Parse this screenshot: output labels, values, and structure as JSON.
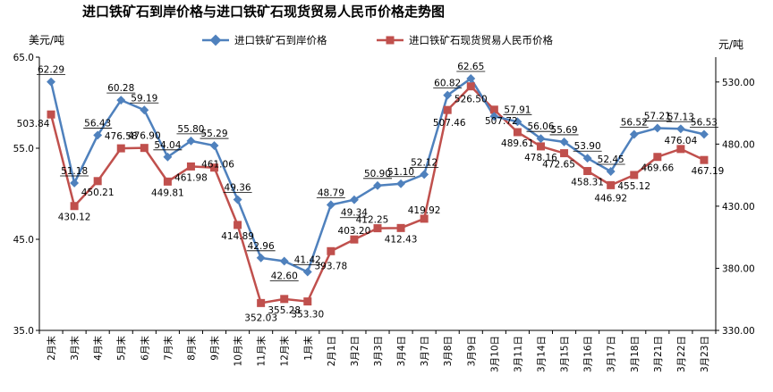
{
  "chart_data": {
    "type": "line",
    "title": "进口铁矿石到岸价格与进口铁矿石现货贸易人民币价格走势图",
    "y_left_unit": "美元/吨",
    "y_right_unit": "元/吨",
    "y_left_ticks": [
      "65.0",
      "55.0",
      "45.0",
      "35.0"
    ],
    "y_right_ticks": [
      "530.00",
      "480.00",
      "430.00",
      "380.00",
      "330.00"
    ],
    "y_left_range": [
      35,
      65
    ],
    "y_right_range": [
      330,
      550
    ],
    "grid": false,
    "legend_position": "top",
    "categories": [
      "2月末",
      "3月末",
      "4月末",
      "5月末",
      "6月末",
      "7月末",
      "8月末",
      "9月末",
      "10月末",
      "11月末",
      "12月末",
      "1月末",
      "2月1日",
      "3月2日",
      "3月3日",
      "3月4日",
      "3月7日",
      "3月8日",
      "3月9日",
      "3月10日",
      "3月11日",
      "3月14日",
      "3月15日",
      "3月16日",
      "3月17日",
      "3月18日",
      "3月21日",
      "3月22日",
      "3月23日"
    ],
    "series": [
      {
        "name": "进口铁矿石到岸价格",
        "axis": "left",
        "color": "#4F81BD",
        "values": [
          62.29,
          51.18,
          56.43,
          60.28,
          59.19,
          54.04,
          55.8,
          55.29,
          49.36,
          42.96,
          42.6,
          41.42,
          48.79,
          49.34,
          50.9,
          51.1,
          52.12,
          60.82,
          62.65,
          58.5,
          57.91,
          56.06,
          55.69,
          53.9,
          52.45,
          56.52,
          57.21,
          57.13,
          56.53
        ],
        "labels": [
          "62.29",
          "51.18",
          "56.43",
          "60.28",
          "59.19",
          "54.04",
          "55.80",
          "55.29",
          "49.36",
          "42.96",
          "42.60",
          "41.42",
          "48.79",
          "49.34",
          "50.90",
          "51.10",
          "52.12",
          "60.82",
          "62.65",
          "",
          "57.91",
          "56.06",
          "55.69",
          "53.90",
          "52.45",
          "56.52",
          "57.21",
          "57.13",
          "56.53"
        ]
      },
      {
        "name": "进口铁矿石现货贸易人民币价格",
        "axis": "right",
        "color": "#C0504D",
        "values": [
          503.84,
          430.12,
          450.21,
          476.58,
          476.9,
          449.81,
          461.98,
          461.06,
          414.89,
          352.03,
          355.28,
          353.3,
          393.78,
          403.2,
          412.25,
          412.43,
          419.92,
          507.46,
          526.5,
          507.72,
          489.61,
          478.16,
          472.65,
          458.31,
          446.92,
          455.12,
          469.66,
          476.04,
          467.19
        ],
        "labels": [
          "503.84",
          "430.12",
          "450.21",
          "476.58",
          "476.90",
          "449.81",
          "461.98",
          "461.06",
          "414.89",
          "352.03",
          "355.28",
          "353.30",
          "393.78",
          "403.20",
          "412.25",
          "412.43",
          "419.92",
          "507.46",
          "526.50",
          "507.72",
          "489.61",
          "478.16",
          "472.65",
          "458.31",
          "446.92",
          "455.12",
          "469.66",
          "476.04",
          "467.19"
        ]
      }
    ]
  }
}
